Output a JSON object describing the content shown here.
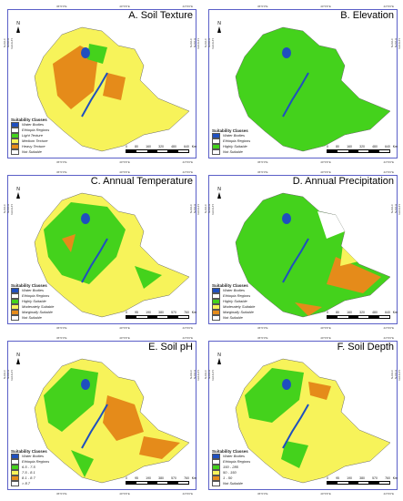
{
  "colors": {
    "water": "#1f4fbf",
    "yellow": "#f7f35a",
    "green": "#44d21c",
    "lightgreen": "#a5e04e",
    "orange": "#e58b1a",
    "darkorange": "#d2611a",
    "frame": "#5a5fc8"
  },
  "coords": {
    "lon": [
      "36°0'0\"E",
      "40°0'0\"E",
      "44°0'0\"E"
    ],
    "lat": [
      "12°0'0\"N",
      "8°0'0\"N",
      "4°0'0\"N"
    ]
  },
  "panels": [
    {
      "id": "soil-texture",
      "title": "A. Soil Texture",
      "legend_title": "Suitability Classes",
      "legend": [
        {
          "label": "Water Bodies",
          "color": "water"
        },
        {
          "label": "Ethiopia Regions",
          "color": "none"
        },
        {
          "label": "Light Texture",
          "color": "green"
        },
        {
          "label": "Medium Texture",
          "color": "yellow"
        },
        {
          "label": "Heavy Texture",
          "color": "orange"
        },
        {
          "label": "Not Suitable",
          "color": "white"
        }
      ],
      "scale": [
        "0",
        "80",
        "160",
        "320",
        "480",
        "640"
      ],
      "unit": "Km",
      "base": "yellow"
    },
    {
      "id": "elevation",
      "title": "B. Elevation",
      "legend_title": "Suitability Classes",
      "legend": [
        {
          "label": "Water Bodies",
          "color": "water"
        },
        {
          "label": "Ethiopia Regions",
          "color": "none"
        },
        {
          "label": "Highly Suitable",
          "color": "green"
        },
        {
          "label": "Not Suitable",
          "color": "white"
        }
      ],
      "scale": [
        "0",
        "80",
        "160",
        "320",
        "480",
        "640"
      ],
      "unit": "Km",
      "base": "green"
    },
    {
      "id": "annual-temperature",
      "title": "C. Annual Temperature",
      "legend_title": "Suitability Classes",
      "legend": [
        {
          "label": "Water Bodies",
          "color": "water"
        },
        {
          "label": "Ethiopia Regions",
          "color": "none"
        },
        {
          "label": "Highly Suitable",
          "color": "green"
        },
        {
          "label": "Moderately Suitable",
          "color": "yellow"
        },
        {
          "label": "Marginally Suitable",
          "color": "orange"
        },
        {
          "label": "Not Suitable",
          "color": "white"
        }
      ],
      "scale": [
        "0",
        "95",
        "190",
        "380",
        "570",
        "760"
      ],
      "unit": "Km",
      "base": "yellow"
    },
    {
      "id": "annual-precipitation",
      "title": "D. Annual Precipitation",
      "legend_title": "Suitability Classes",
      "legend": [
        {
          "label": "Water Bodies",
          "color": "water"
        },
        {
          "label": "Ethiopia Regions",
          "color": "none"
        },
        {
          "label": "Highly Suitable",
          "color": "green"
        },
        {
          "label": "Moderately Suitable",
          "color": "yellow"
        },
        {
          "label": "Marginally Suitable",
          "color": "orange"
        },
        {
          "label": "Not Suitable",
          "color": "white"
        }
      ],
      "scale": [
        "0",
        "80",
        "160",
        "320",
        "480",
        "640"
      ],
      "unit": "Km",
      "base": "green"
    },
    {
      "id": "soil-ph",
      "title": "E. Soil pH",
      "legend_title": "Suitability Classes",
      "legend": [
        {
          "label": "Water Bodies",
          "color": "water"
        },
        {
          "label": "Ethiopia Regions",
          "color": "none"
        },
        {
          "label": "6.5 - 7.5",
          "color": "green"
        },
        {
          "label": "7.5 - 8.1",
          "color": "yellow"
        },
        {
          "label": "8.1 - 8.7",
          "color": "orange"
        },
        {
          "label": "> 8.7",
          "color": "white"
        }
      ],
      "scale": [
        "0",
        "95",
        "190",
        "380",
        "570",
        "760"
      ],
      "unit": "Km",
      "base": "yellow"
    },
    {
      "id": "soil-depth",
      "title": "F. Soil Depth",
      "legend_title": "Suitability Classes",
      "legend": [
        {
          "label": "Water Bodies",
          "color": "water"
        },
        {
          "label": "Ethiopia Regions",
          "color": "none"
        },
        {
          "label": "150 - 285",
          "color": "green"
        },
        {
          "label": "50 - 150",
          "color": "yellow"
        },
        {
          "label": "1 - 50",
          "color": "orange"
        },
        {
          "label": "Not Suitable",
          "color": "white"
        }
      ],
      "scale": [
        "0",
        "95",
        "190",
        "380",
        "570",
        "760"
      ],
      "unit": "Km",
      "base": "yellow"
    }
  ]
}
